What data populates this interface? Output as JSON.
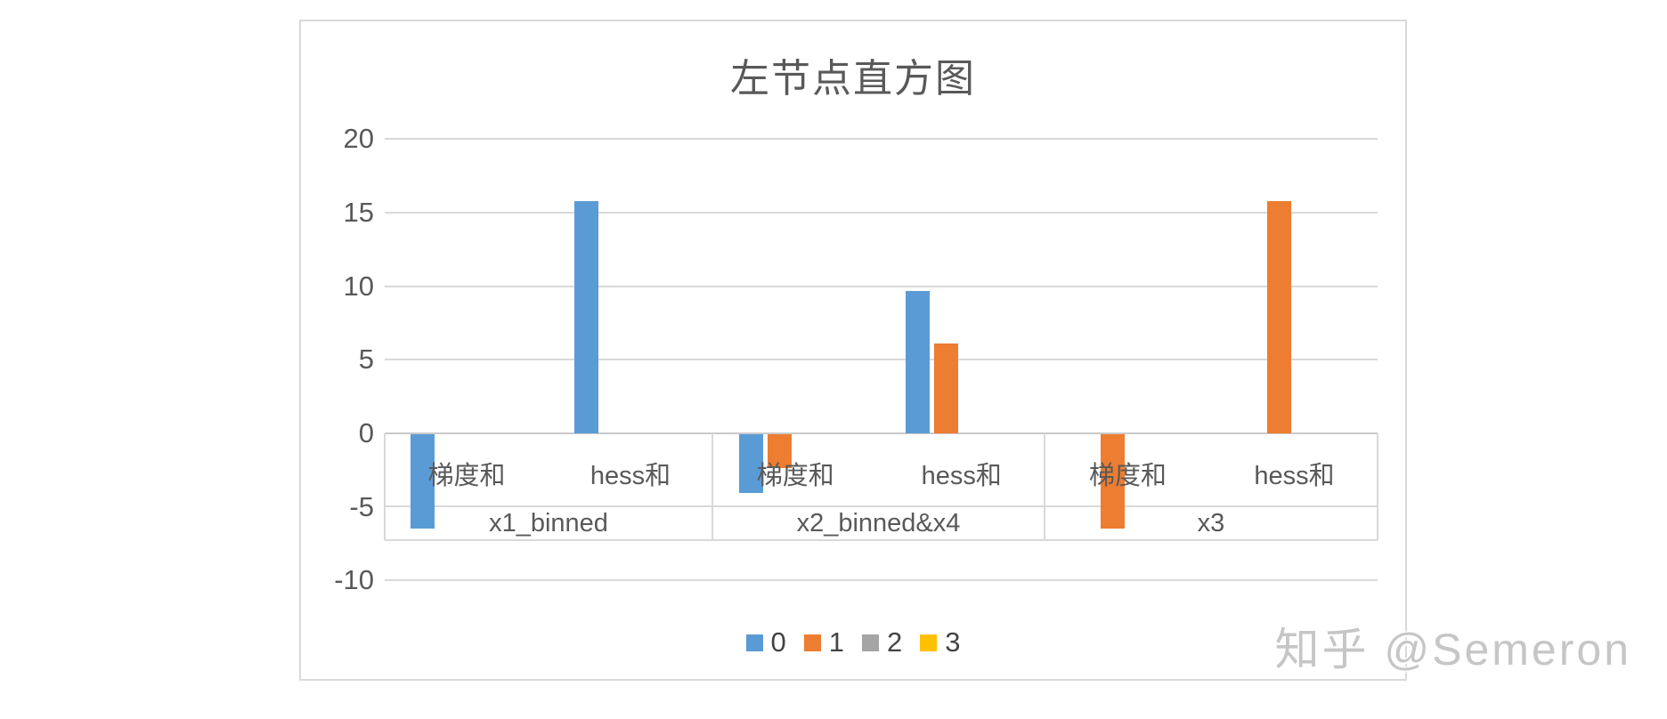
{
  "watermark": "知乎 @Semeron",
  "chart_data": {
    "type": "bar",
    "title": "左节点直方图",
    "xlabel": "",
    "ylabel": "",
    "ylim": [
      -10,
      20
    ],
    "ytick_step": 5,
    "yticks": [
      "20",
      "15",
      "10",
      "5",
      "0",
      "-5",
      "-10"
    ],
    "grid": true,
    "legend_position": "bottom",
    "series": [
      {
        "name": "0",
        "color": "#5B9BD5"
      },
      {
        "name": "1",
        "color": "#ED7D31"
      },
      {
        "name": "2",
        "color": "#A5A5A5"
      },
      {
        "name": "3",
        "color": "#FFC000"
      }
    ],
    "groups": [
      {
        "label": "x1_binned",
        "categories": [
          "梯度和",
          "hess和"
        ],
        "values": [
          [
            -6.4,
            null,
            null,
            null
          ],
          [
            15.8,
            null,
            null,
            null
          ]
        ]
      },
      {
        "label": "x2_binned&x4",
        "categories": [
          "梯度和",
          "hess和"
        ],
        "values": [
          [
            -4.0,
            -2.3,
            null,
            null
          ],
          [
            9.7,
            6.1,
            null,
            null
          ]
        ]
      },
      {
        "label": "x3",
        "categories": [
          "梯度和",
          "hess和"
        ],
        "values": [
          [
            null,
            -6.4,
            null,
            null
          ],
          [
            null,
            15.8,
            null,
            null
          ]
        ]
      }
    ]
  }
}
